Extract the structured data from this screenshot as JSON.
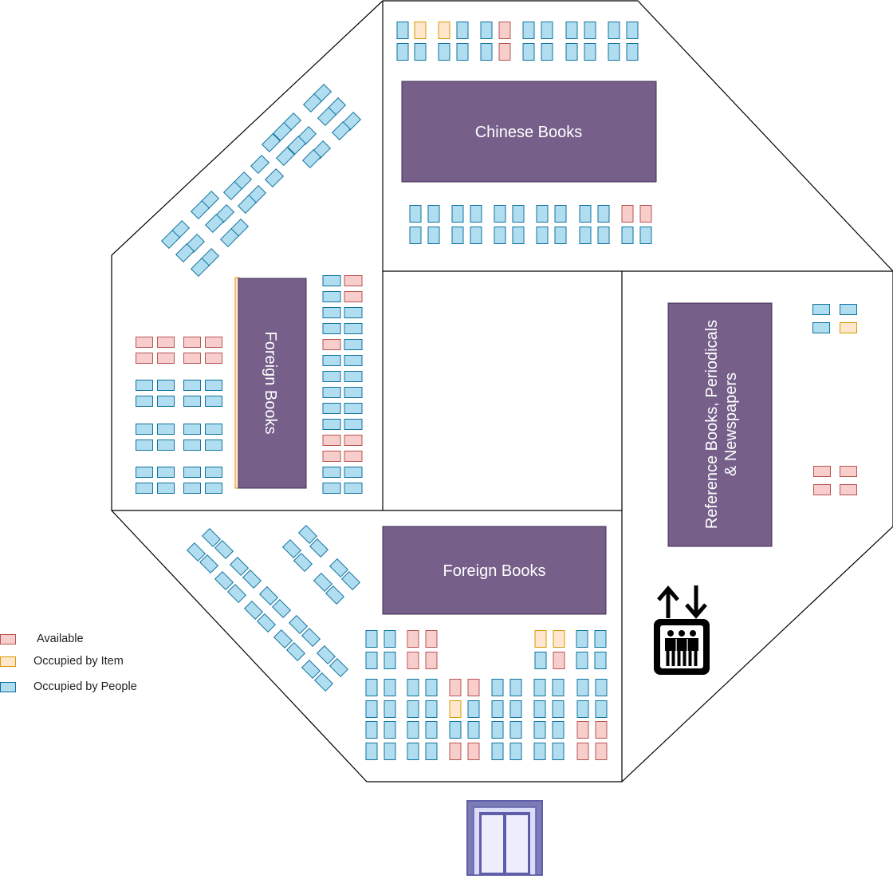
{
  "title": "",
  "colors": {
    "available_fill": "#f8cecc",
    "available_stroke": "#b85450",
    "item_fill": "#ffe6cc",
    "item_stroke": "#d79b00",
    "people_fill": "#b1ddf0",
    "people_stroke": "#10739e",
    "shelf_fill": "#76608a",
    "shelf_stroke": "#432d57",
    "door_stroke": "#5f5ea8",
    "door_fill": "#dadcf8"
  },
  "shelves": {
    "chinese": "Chinese Books",
    "foreign_left": "Foreign Books",
    "foreign_bottom": "Foreign Books",
    "reference_line1": "Reference Books, Periodicals",
    "reference_line2": "& Newspapers"
  },
  "legend": {
    "available": "Available",
    "occupied_item": "Occupied by Item",
    "occupied_people": "Occupied by People"
  },
  "icons": {
    "elevator": "elevator-icon",
    "entrance": "entrance-door-icon"
  },
  "seat_counts": {
    "available": 45,
    "occupied_by_item": 6,
    "occupied_by_people": 221
  }
}
